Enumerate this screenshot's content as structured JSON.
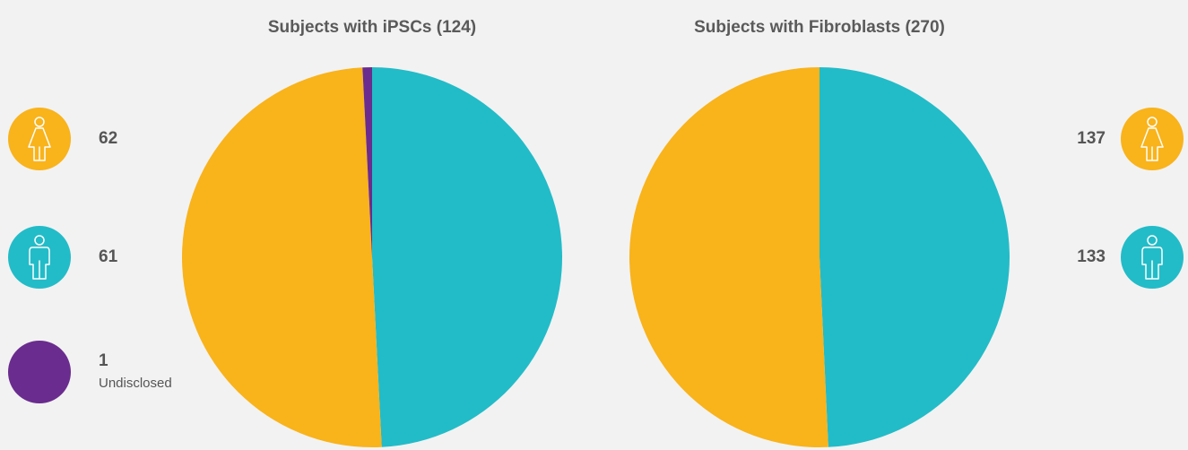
{
  "chart_data": [
    {
      "type": "pie",
      "title": "Subjects with iPSCs (124)",
      "categories": [
        null,
        null,
        "Undisclosed"
      ],
      "values": [
        61,
        62,
        1
      ],
      "colors": [
        "#22bcc8",
        "#f9b31b",
        "#6a2c8e"
      ]
    },
    {
      "type": "pie",
      "title": "Subjects with Fibroblasts (270)",
      "categories": [
        null,
        null
      ],
      "values": [
        133,
        137
      ],
      "colors": [
        "#22bcc8",
        "#f9b31b"
      ]
    }
  ]
}
